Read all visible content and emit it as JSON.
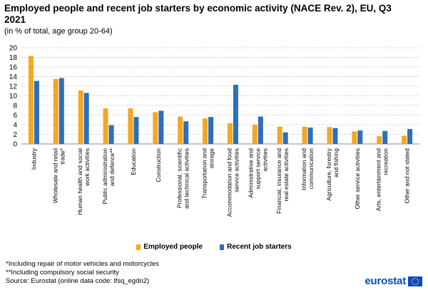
{
  "title": "Employed people and recent job starters by economic activity (NACE Rev. 2), EU, Q3 2021",
  "subtitle": "(in % of total, age group 20-64)",
  "notes": [
    "*Including  repair of motor vehicles and motorcycles",
    "**Including  compulsory social security",
    "Source:  Eurostat  (online data code: lfsq_egdn2)"
  ],
  "logo_text": "eurostat",
  "colors": {
    "employed": "#f5a623",
    "starters": "#2e6fb7",
    "grid": "#d0d0d0",
    "axis": "#888888"
  },
  "chart_data": {
    "type": "bar",
    "categories": [
      "Industry",
      "Wholesale and retail trade*",
      "Human health and social work activities",
      "Public administration and defence**",
      "Education",
      "Construction",
      "Professional, scientific and technical activities",
      "Transportation and storage",
      "Accommodation and food service activities",
      "Administrative and support service activities",
      "Financial, insurance and real estate activities",
      "Information and communication",
      "Agriculture, forestry and fishing",
      "Other service activities",
      "Arts, entertainment and recreation",
      "Other and not stated"
    ],
    "series": [
      {
        "name": "Employed people",
        "values": [
          18.3,
          13.5,
          11.1,
          7.4,
          7.4,
          6.6,
          5.7,
          5.3,
          4.3,
          4.0,
          3.6,
          3.6,
          3.5,
          2.6,
          1.6,
          1.7
        ]
      },
      {
        "name": "Recent job starters",
        "values": [
          13.1,
          13.7,
          10.6,
          3.9,
          5.6,
          6.9,
          4.7,
          5.6,
          12.3,
          5.7,
          2.4,
          3.4,
          3.3,
          2.8,
          2.7,
          3.1
        ]
      }
    ],
    "y_ticks": [
      "20",
      "18",
      "16",
      "14",
      "12",
      "10",
      "8",
      "6",
      "4",
      "2",
      "0"
    ],
    "ylim": [
      0,
      20
    ],
    "grid": true,
    "legend_position": "bottom-center"
  }
}
